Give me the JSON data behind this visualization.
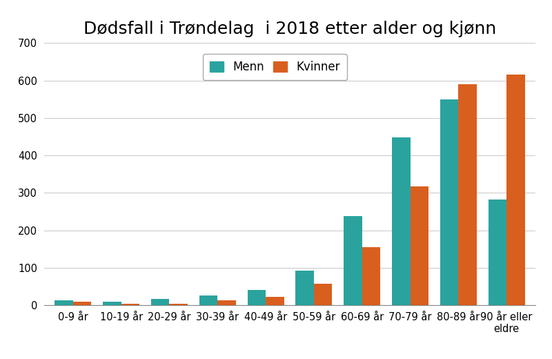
{
  "title": "Dødsfall i Trøndelag  i 2018 etter alder og kjønn",
  "categories": [
    "0-9 år",
    "10-19 år",
    "20-29 år",
    "30-39 år",
    "40-49 år",
    "50-59 år",
    "60-69 år",
    "70-79 år",
    "80-89 år",
    "90 år eller\neldre"
  ],
  "menn": [
    12,
    10,
    17,
    25,
    40,
    92,
    237,
    448,
    549,
    282
  ],
  "kvinner": [
    9,
    3,
    3,
    12,
    22,
    57,
    155,
    317,
    590,
    615
  ],
  "menn_color": "#2aa39e",
  "kvinner_color": "#d95f1f",
  "legend_menn": "Menn",
  "legend_kvinner": "Kvinner",
  "ylim": [
    0,
    700
  ],
  "yticks": [
    0,
    100,
    200,
    300,
    400,
    500,
    600,
    700
  ],
  "title_fontsize": 18,
  "tick_fontsize": 10.5,
  "legend_fontsize": 12,
  "background_color": "#ffffff",
  "grid_color": "#cccccc"
}
